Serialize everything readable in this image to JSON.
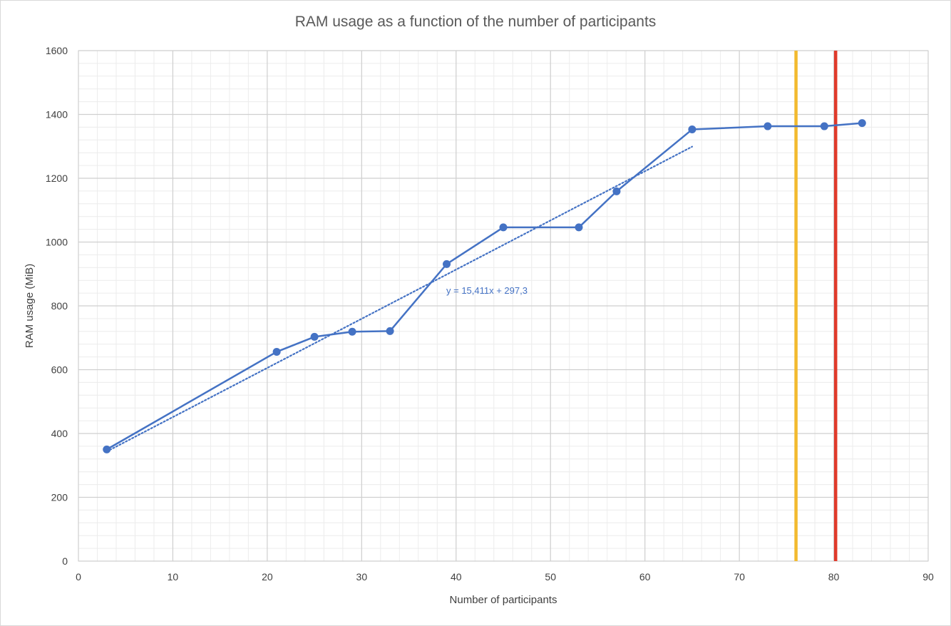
{
  "chart_data": {
    "type": "line",
    "title": "RAM usage as a function of the number of participants",
    "xlabel": "Number of participants",
    "ylabel": "RAM usage (MiB)",
    "xlim": [
      0,
      90
    ],
    "ylim": [
      0,
      1600
    ],
    "x_ticks": [
      "0",
      "10",
      "20",
      "30",
      "40",
      "50",
      "60",
      "70",
      "80",
      "90"
    ],
    "y_ticks": [
      "0",
      "200",
      "400",
      "600",
      "800",
      "1000",
      "1200",
      "1400",
      "1600"
    ],
    "x_major_step": 10,
    "x_minor_step": 2,
    "y_major_step": 200,
    "y_minor_step": 40,
    "grid": true,
    "legend": "none",
    "series": [
      {
        "color": "#4472C4",
        "x": [
          3,
          21,
          25,
          29,
          33,
          39,
          45,
          53,
          57,
          65,
          73,
          79,
          83
        ],
        "y": [
          350,
          656,
          703,
          719,
          721,
          931,
          1046,
          1046,
          1159,
          1353,
          1363,
          1363,
          1373
        ]
      }
    ],
    "trendline": {
      "type": "linear",
      "slope": 15.411,
      "intercept": 297.3,
      "x_range": [
        3,
        65
      ],
      "label": "y = 15,411x + 297,3",
      "color": "#4472C4",
      "style": "dotted"
    },
    "vertical_lines": [
      {
        "x": 76,
        "color": "#F2BA2F"
      },
      {
        "x": 80.2,
        "color": "#E03A2B"
      }
    ]
  }
}
